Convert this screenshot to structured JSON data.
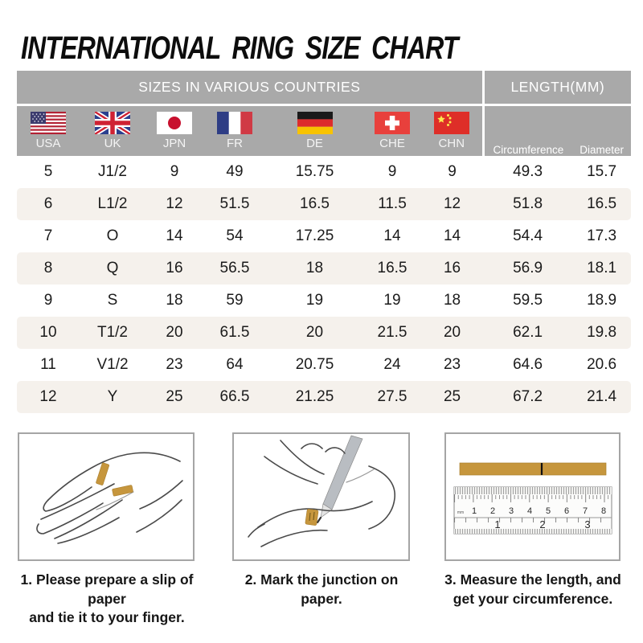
{
  "page": {
    "title": "INTERNATIONAL RING SIZE CHART"
  },
  "chart_data": {
    "type": "table",
    "title": "INTERNATIONAL RING SIZE CHART",
    "group_headers": {
      "countries": "SIZES IN VARIOUS COUNTRIES",
      "length": "LENGTH(MM)"
    },
    "columns": [
      "USA",
      "UK",
      "JPN",
      "FR",
      "DE",
      "CHE",
      "CHN",
      "Circumference",
      "Diameter"
    ],
    "rows": [
      [
        "5",
        "J1/2",
        "9",
        "49",
        "15.75",
        "9",
        "9",
        "49.3",
        "15.7"
      ],
      [
        "6",
        "L1/2",
        "12",
        "51.5",
        "16.5",
        "11.5",
        "12",
        "51.8",
        "16.5"
      ],
      [
        "7",
        "O",
        "14",
        "54",
        "17.25",
        "14",
        "14",
        "54.4",
        "17.3"
      ],
      [
        "8",
        "Q",
        "16",
        "56.5",
        "18",
        "16.5",
        "16",
        "56.9",
        "18.1"
      ],
      [
        "9",
        "S",
        "18",
        "59",
        "19",
        "19",
        "18",
        "59.5",
        "18.9"
      ],
      [
        "10",
        "T1/2",
        "20",
        "61.5",
        "20",
        "21.5",
        "20",
        "62.1",
        "19.8"
      ],
      [
        "11",
        "V1/2",
        "23",
        "64",
        "20.75",
        "24",
        "23",
        "64.6",
        "20.6"
      ],
      [
        "12",
        "Y",
        "25",
        "66.5",
        "21.25",
        "27.5",
        "25",
        "67.2",
        "21.4"
      ]
    ]
  },
  "table": {
    "countries": [
      {
        "code": "usa",
        "label": "USA"
      },
      {
        "code": "uk",
        "label": "UK"
      },
      {
        "code": "jpn",
        "label": "JPN"
      },
      {
        "code": "fr",
        "label": "FR"
      },
      {
        "code": "de",
        "label": "DE"
      },
      {
        "code": "che",
        "label": "CHE"
      },
      {
        "code": "chn",
        "label": "CHN"
      }
    ],
    "length_columns": [
      "Circumference",
      "Diameter"
    ]
  },
  "instructions": [
    {
      "lines": [
        "1. Please prepare a slip of paper",
        "and tie it to your finger."
      ]
    },
    {
      "lines": [
        "2. Mark the junction on paper.",
        ""
      ]
    },
    {
      "lines": [
        "3. Measure the length, and",
        "get your circumference."
      ],
      "ruler": {
        "top": [
          "1",
          "2",
          "3",
          "4",
          "5",
          "6",
          "7",
          "8"
        ],
        "bottom": [
          "1",
          "2",
          "3"
        ],
        "unit": "mm"
      }
    }
  ],
  "colors": {
    "header_bg": "#a9a9a9",
    "header_text": "#ffffff",
    "stripe_bg": "#f5f1ec",
    "data_text": "#1b1b1b",
    "paper_gold": "#c6963d",
    "panel_border": "#a5a5a5"
  }
}
